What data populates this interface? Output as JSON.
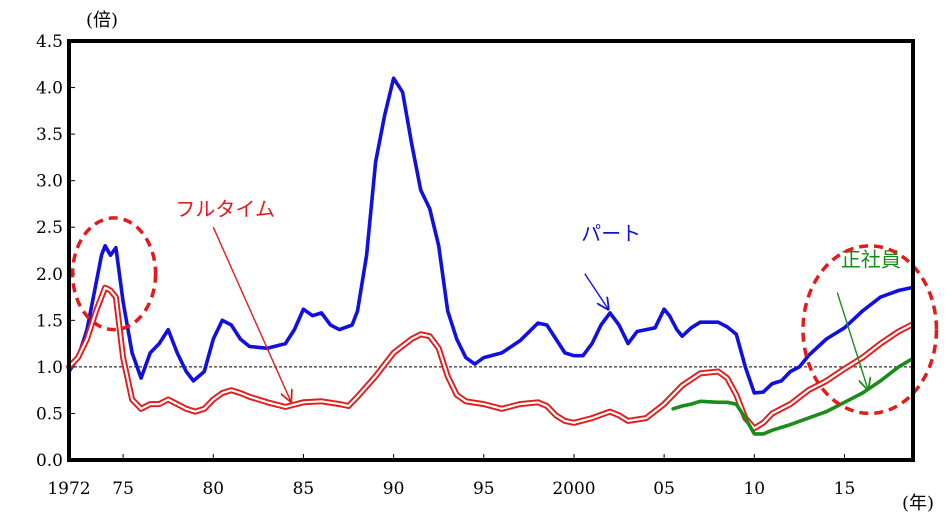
{
  "chart_data": {
    "type": "line",
    "y_unit": "(倍)",
    "x_unit": "(年)",
    "ylim": [
      0,
      4.5
    ],
    "y_ticks": [
      "0.0",
      "0.5",
      "1.0",
      "1.5",
      "2.0",
      "2.5",
      "3.0",
      "3.5",
      "4.0",
      "4.5"
    ],
    "x_ticks": [
      {
        "year": 1972,
        "label": "1972"
      },
      {
        "year": 1975,
        "label": "75"
      },
      {
        "year": 1980,
        "label": "80"
      },
      {
        "year": 1985,
        "label": "85"
      },
      {
        "year": 1990,
        "label": "90"
      },
      {
        "year": 1995,
        "label": "95"
      },
      {
        "year": 2000,
        "label": "2000"
      },
      {
        "year": 2005,
        "label": "05"
      },
      {
        "year": 2010,
        "label": "10"
      },
      {
        "year": 2015,
        "label": "15"
      }
    ],
    "xlim": [
      1972,
      2018.8
    ],
    "reference_line": 1.0,
    "grid": false,
    "series": [
      {
        "name": "パート",
        "color": "#1010e0",
        "style": "solid",
        "points": [
          [
            1972,
            0.95
          ],
          [
            1972.5,
            1.1
          ],
          [
            1973,
            1.4
          ],
          [
            1973.5,
            1.9
          ],
          [
            1973.8,
            2.2
          ],
          [
            1974,
            2.3
          ],
          [
            1974.3,
            2.2
          ],
          [
            1974.6,
            2.28
          ],
          [
            1975,
            1.7
          ],
          [
            1975.5,
            1.15
          ],
          [
            1976,
            0.88
          ],
          [
            1976.5,
            1.15
          ],
          [
            1977,
            1.25
          ],
          [
            1977.5,
            1.4
          ],
          [
            1978,
            1.15
          ],
          [
            1978.5,
            0.95
          ],
          [
            1978.9,
            0.85
          ],
          [
            1979.5,
            0.95
          ],
          [
            1980,
            1.3
          ],
          [
            1980.5,
            1.5
          ],
          [
            1981,
            1.45
          ],
          [
            1981.5,
            1.3
          ],
          [
            1982,
            1.22
          ],
          [
            1983,
            1.2
          ],
          [
            1984,
            1.25
          ],
          [
            1984.5,
            1.4
          ],
          [
            1985,
            1.62
          ],
          [
            1985.5,
            1.55
          ],
          [
            1986,
            1.58
          ],
          [
            1986.5,
            1.45
          ],
          [
            1987,
            1.4
          ],
          [
            1987.7,
            1.45
          ],
          [
            1988,
            1.6
          ],
          [
            1988.5,
            2.2
          ],
          [
            1989,
            3.2
          ],
          [
            1989.5,
            3.7
          ],
          [
            1990,
            4.1
          ],
          [
            1990.5,
            3.95
          ],
          [
            1991,
            3.4
          ],
          [
            1991.5,
            2.9
          ],
          [
            1992,
            2.7
          ],
          [
            1992.5,
            2.3
          ],
          [
            1993,
            1.6
          ],
          [
            1993.5,
            1.3
          ],
          [
            1994,
            1.1
          ],
          [
            1994.5,
            1.03
          ],
          [
            1995,
            1.1
          ],
          [
            1996,
            1.15
          ],
          [
            1997,
            1.28
          ],
          [
            1998,
            1.47
          ],
          [
            1998.5,
            1.45
          ],
          [
            1999,
            1.3
          ],
          [
            1999.5,
            1.15
          ],
          [
            2000,
            1.12
          ],
          [
            2000.5,
            1.12
          ],
          [
            2001,
            1.25
          ],
          [
            2001.5,
            1.45
          ],
          [
            2002,
            1.58
          ],
          [
            2002.5,
            1.45
          ],
          [
            2003,
            1.25
          ],
          [
            2003.5,
            1.38
          ],
          [
            2004,
            1.4
          ],
          [
            2004.5,
            1.42
          ],
          [
            2005,
            1.62
          ],
          [
            2005.3,
            1.55
          ],
          [
            2005.7,
            1.4
          ],
          [
            2006,
            1.33
          ],
          [
            2006.5,
            1.42
          ],
          [
            2007,
            1.48
          ],
          [
            2008,
            1.48
          ],
          [
            2008.5,
            1.43
          ],
          [
            2009,
            1.35
          ],
          [
            2009.5,
            1.0
          ],
          [
            2010,
            0.72
          ],
          [
            2010.5,
            0.73
          ],
          [
            2011,
            0.82
          ],
          [
            2011.5,
            0.85
          ],
          [
            2012,
            0.95
          ],
          [
            2012.5,
            1.0
          ],
          [
            2013,
            1.12
          ],
          [
            2014,
            1.3
          ],
          [
            2015,
            1.42
          ],
          [
            2016,
            1.6
          ],
          [
            2017,
            1.75
          ],
          [
            2018,
            1.82
          ],
          [
            2018.7,
            1.85
          ]
        ]
      },
      {
        "name": "フルタイム",
        "color": "#e51a1a",
        "style": "double",
        "points": [
          [
            1972,
            1.0
          ],
          [
            1972.5,
            1.1
          ],
          [
            1973,
            1.3
          ],
          [
            1973.5,
            1.6
          ],
          [
            1974,
            1.85
          ],
          [
            1974.3,
            1.82
          ],
          [
            1974.6,
            1.75
          ],
          [
            1975,
            1.1
          ],
          [
            1975.5,
            0.65
          ],
          [
            1976,
            0.55
          ],
          [
            1976.5,
            0.6
          ],
          [
            1977,
            0.6
          ],
          [
            1977.5,
            0.65
          ],
          [
            1978,
            0.6
          ],
          [
            1978.5,
            0.55
          ],
          [
            1979,
            0.52
          ],
          [
            1979.5,
            0.55
          ],
          [
            1980,
            0.65
          ],
          [
            1980.5,
            0.72
          ],
          [
            1981,
            0.75
          ],
          [
            1981.5,
            0.72
          ],
          [
            1982,
            0.68
          ],
          [
            1983,
            0.62
          ],
          [
            1984,
            0.57
          ],
          [
            1985,
            0.62
          ],
          [
            1986,
            0.63
          ],
          [
            1987,
            0.6
          ],
          [
            1987.5,
            0.58
          ],
          [
            1988,
            0.68
          ],
          [
            1989,
            0.9
          ],
          [
            1990,
            1.15
          ],
          [
            1991,
            1.3
          ],
          [
            1991.5,
            1.35
          ],
          [
            1992,
            1.33
          ],
          [
            1992.5,
            1.2
          ],
          [
            1993,
            0.9
          ],
          [
            1993.5,
            0.7
          ],
          [
            1994,
            0.63
          ],
          [
            1995,
            0.6
          ],
          [
            1996,
            0.55
          ],
          [
            1997,
            0.6
          ],
          [
            1998,
            0.62
          ],
          [
            1998.5,
            0.58
          ],
          [
            1999,
            0.48
          ],
          [
            1999.5,
            0.42
          ],
          [
            2000,
            0.4
          ],
          [
            2001,
            0.45
          ],
          [
            2002,
            0.52
          ],
          [
            2002.5,
            0.48
          ],
          [
            2003,
            0.42
          ],
          [
            2004,
            0.45
          ],
          [
            2005,
            0.6
          ],
          [
            2006,
            0.8
          ],
          [
            2007,
            0.93
          ],
          [
            2008,
            0.95
          ],
          [
            2008.5,
            0.88
          ],
          [
            2009,
            0.7
          ],
          [
            2009.5,
            0.45
          ],
          [
            2010,
            0.34
          ],
          [
            2010.5,
            0.4
          ],
          [
            2011,
            0.5
          ],
          [
            2012,
            0.6
          ],
          [
            2013,
            0.75
          ],
          [
            2014,
            0.85
          ],
          [
            2015,
            0.98
          ],
          [
            2016,
            1.1
          ],
          [
            2017,
            1.25
          ],
          [
            2018,
            1.38
          ],
          [
            2018.7,
            1.45
          ]
        ]
      },
      {
        "name": "正社員",
        "color": "#1a8c1a",
        "style": "solid",
        "points": [
          [
            2005.5,
            0.55
          ],
          [
            2006,
            0.58
          ],
          [
            2006.5,
            0.6
          ],
          [
            2007,
            0.63
          ],
          [
            2008,
            0.62
          ],
          [
            2008.5,
            0.62
          ],
          [
            2009,
            0.6
          ],
          [
            2009.5,
            0.45
          ],
          [
            2010,
            0.28
          ],
          [
            2010.5,
            0.28
          ],
          [
            2011,
            0.32
          ],
          [
            2012,
            0.38
          ],
          [
            2013,
            0.45
          ],
          [
            2014,
            0.52
          ],
          [
            2015,
            0.62
          ],
          [
            2016,
            0.72
          ],
          [
            2017,
            0.85
          ],
          [
            2018,
            1.0
          ],
          [
            2018.7,
            1.08
          ]
        ]
      }
    ],
    "annotations": [
      {
        "text": "フルタイム",
        "color": "#e51a1a",
        "label_year": 1977.9,
        "label_val": 2.62,
        "arrow_from": [
          1980,
          2.5
        ],
        "arrow_to": [
          1984.3,
          0.63
        ]
      },
      {
        "text": "パート",
        "color": "#1010e0",
        "label_year": 2000.4,
        "label_val": 2.36,
        "arrow_from": [
          2000.6,
          2.0
        ],
        "arrow_to": [
          2001.9,
          1.62
        ]
      },
      {
        "text": "正社員",
        "color": "#1a8c1a",
        "label_year": 2014.8,
        "label_val": 2.08,
        "arrow_from": [
          2014.6,
          1.8
        ],
        "arrow_to": [
          2016.3,
          0.76
        ]
      }
    ],
    "highlight_ellipses": [
      {
        "center": [
          1974.5,
          2.0
        ],
        "rx_years": 2.3,
        "ry_val": 0.6
      },
      {
        "center": [
          2016.4,
          1.4
        ],
        "rx_years": 3.7,
        "ry_val": 0.9
      }
    ]
  }
}
